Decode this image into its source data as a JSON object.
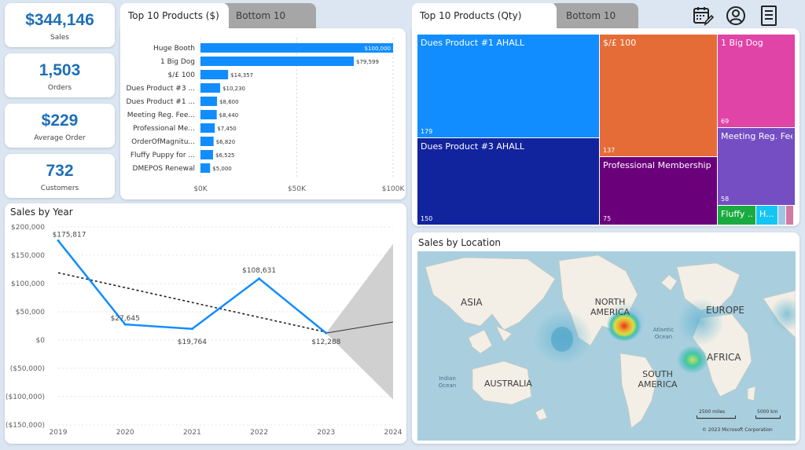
{
  "kpis": [
    {
      "value": "$344,146",
      "label": "Sales"
    },
    {
      "value": "1,503",
      "label": "Orders"
    },
    {
      "value": "$229",
      "label": "Average Order"
    },
    {
      "value": "732",
      "label": "Customers"
    }
  ],
  "top_products_dollars": {
    "tab_active": "Top 10 Products ($)",
    "tab_inactive": "Bottom 10",
    "x_ticks": [
      "$0K",
      "$50K",
      "$100K"
    ],
    "x_max": 100000,
    "rows": [
      {
        "name": "Huge Booth",
        "value": 100000,
        "label": "$100,000"
      },
      {
        "name": "1 Big Dog",
        "value": 79599,
        "label": "$79,599"
      },
      {
        "name": "$/£ 100",
        "value": 14357,
        "label": "$14,357"
      },
      {
        "name": "Dues Product #3 ...",
        "value": 10230,
        "label": "$10,230"
      },
      {
        "name": "Dues Product #1 ...",
        "value": 8600,
        "label": "$8,600"
      },
      {
        "name": "Meeting Reg. Fee...",
        "value": 8440,
        "label": "$8,440"
      },
      {
        "name": "Professional Me...",
        "value": 7450,
        "label": "$7,450"
      },
      {
        "name": "OrderOfMagnitu...",
        "value": 6820,
        "label": "$6,820"
      },
      {
        "name": "Fluffy Puppy for ...",
        "value": 6525,
        "label": "$6,525"
      },
      {
        "name": "DMEPOS Renewal",
        "value": 5000,
        "label": "$5,000"
      }
    ],
    "bar_color": "#118dff"
  },
  "top_products_qty": {
    "tab_active": "Top 10 Products (Qty)",
    "tab_inactive": "Bottom 10",
    "tiles": [
      {
        "name": "Dues Product #1 AHALL",
        "value": "179",
        "color": "#118dff"
      },
      {
        "name": "Dues Product #3 AHALL",
        "value": "150",
        "color": "#12239e"
      },
      {
        "name": "$/£ 100",
        "value": "137",
        "color": "#e66c37"
      },
      {
        "name": "Professional Membership Fe...",
        "value": "75",
        "color": "#6b007b"
      },
      {
        "name": "1 Big Dog",
        "value": "69",
        "color": "#e044a7"
      },
      {
        "name": "Meeting Reg. Fee...",
        "value": "58",
        "color": "#744ec2"
      },
      {
        "name": "Fluffy ...",
        "value": "",
        "color": "#1aab40"
      },
      {
        "name": "H...",
        "value": "",
        "color": "#15c6f4"
      }
    ]
  },
  "toolbar": {
    "icons": [
      "calendar-edit-icon",
      "user-icon",
      "report-icon"
    ]
  },
  "chart_data": {
    "type": "line",
    "title": "Sales by Year",
    "x": [
      2019,
      2020,
      2021,
      2022,
      2023
    ],
    "x_ticks": [
      "2019",
      "2020",
      "2021",
      "2022",
      "2023",
      "2024"
    ],
    "series": [
      {
        "name": "",
        "values": [
          175817,
          27645,
          19764,
          108631,
          12288
        ],
        "color": "#118dff"
      }
    ],
    "data_labels": [
      "$175,817",
      "$27,645",
      "$19,764",
      "$108,631",
      "$12,288"
    ],
    "trend": {
      "x": [
        2019,
        2023
      ],
      "y": [
        119000,
        14000
      ]
    },
    "forecast": {
      "x": [
        2023,
        2024
      ],
      "y": [
        12288,
        32000
      ],
      "upper": 170000,
      "lower": -105000
    },
    "y_ticks": [
      "$200,000",
      "$150,000",
      "$100,000",
      "$50,000",
      "$0",
      "($50,000)",
      "($100,000)",
      "($150,000)"
    ],
    "ylim": [
      -150000,
      200000
    ],
    "xlim": [
      2019,
      2024
    ]
  },
  "map": {
    "title": "Sales by Location",
    "labels": {
      "asia": "ASIA",
      "north_america": "NORTH AMERICA",
      "europe": "EUROPE",
      "atlantic": "Atlantic Ocean",
      "africa": "AFRICA",
      "south_america": "SOUTH AMERICA",
      "indian_ocean": "Indian Ocean",
      "australia": "AUSTRALIA"
    },
    "scale_miles": "2500 miles",
    "scale_km": "5000 km",
    "copyright": "© 2023 Microsoft Corporation"
  }
}
